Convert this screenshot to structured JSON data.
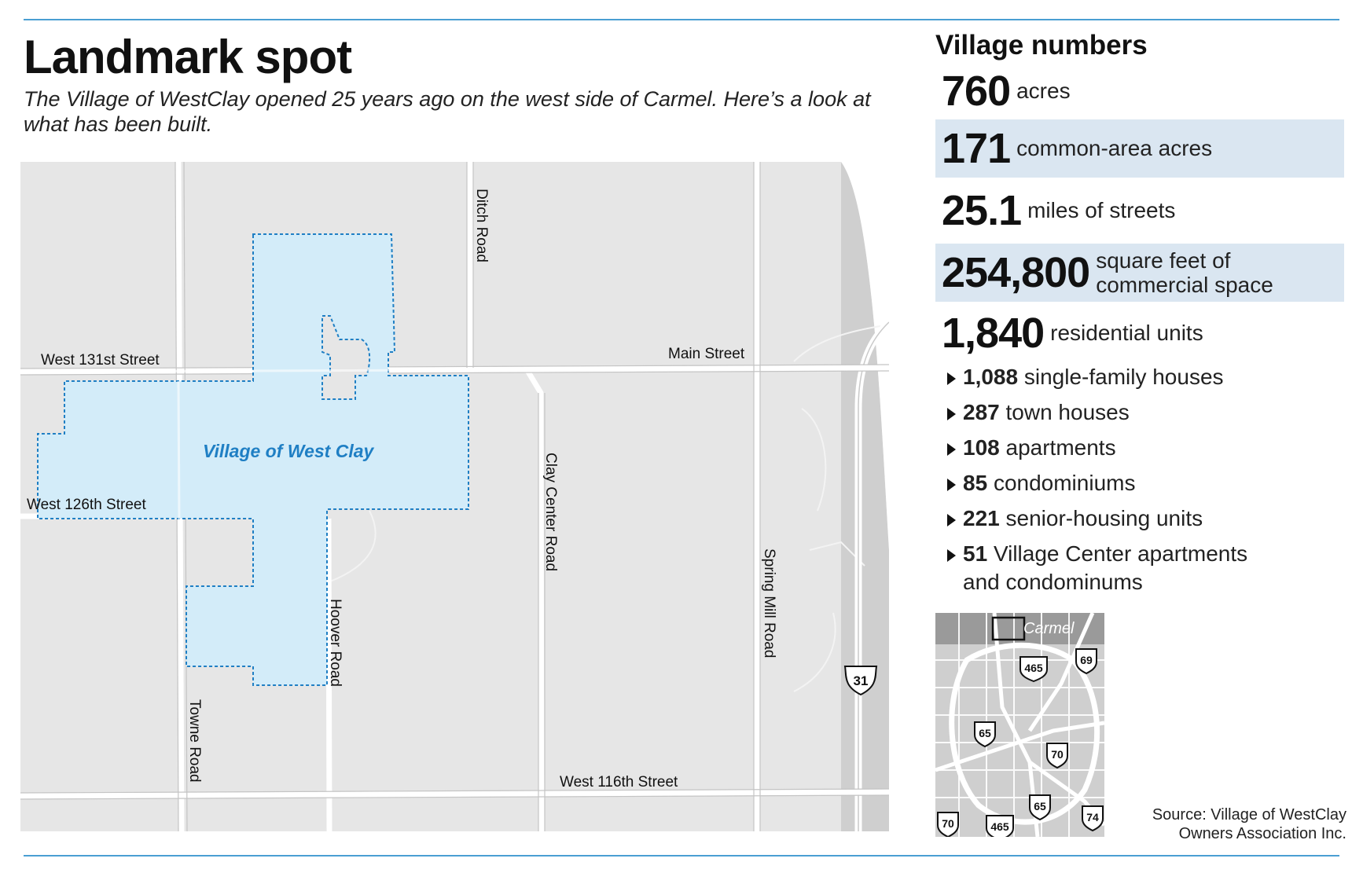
{
  "title": "Landmark spot",
  "subtitle": "The Village of WestClay opened 25 years ago on the west side of Carmel. Here’s a look at what has been built.",
  "map": {
    "area_label": "Village of West Clay",
    "roads": {
      "ditch": "Ditch Road",
      "w131": "West 131st Street",
      "main": "Main Street",
      "clay_center": "Clay Center Road",
      "w126": "West 126th Street",
      "hoover": "Hoover Road",
      "spring_mill": "Spring Mill Road",
      "towne": "Towne Road",
      "w116": "West 116th Street"
    },
    "highway_shield": "31",
    "colors": {
      "area_fill": "#d3ecf9",
      "area_border": "#1f7fc4",
      "land": "#e6e6e6",
      "road": "#ffffff"
    }
  },
  "stats": {
    "heading": "Village numbers",
    "items": [
      {
        "value": "760",
        "label": "acres"
      },
      {
        "value": "171",
        "label": "common-area acres"
      },
      {
        "value": "25.1",
        "label": "miles of streets"
      },
      {
        "value": "254,800",
        "label_line1": "square feet of",
        "label_line2": "commercial space"
      },
      {
        "value": "1,840",
        "label": "residential units"
      }
    ],
    "breakdown": [
      {
        "value": "1,088",
        "label": "single-family houses"
      },
      {
        "value": "287",
        "label": "town houses"
      },
      {
        "value": "108",
        "label": "apartments"
      },
      {
        "value": "85",
        "label": "condominiums"
      },
      {
        "value": "221",
        "label": "senior-housing units"
      },
      {
        "value": "51",
        "label": "Village Center apartments",
        "label_line2": "and condominums"
      }
    ]
  },
  "inset": {
    "city_label": "Carmel",
    "interstates": [
      "465",
      "69",
      "65",
      "70",
      "74"
    ]
  },
  "source": {
    "line1": "Source: Village of WestClay",
    "line2": "Owners Association Inc."
  }
}
